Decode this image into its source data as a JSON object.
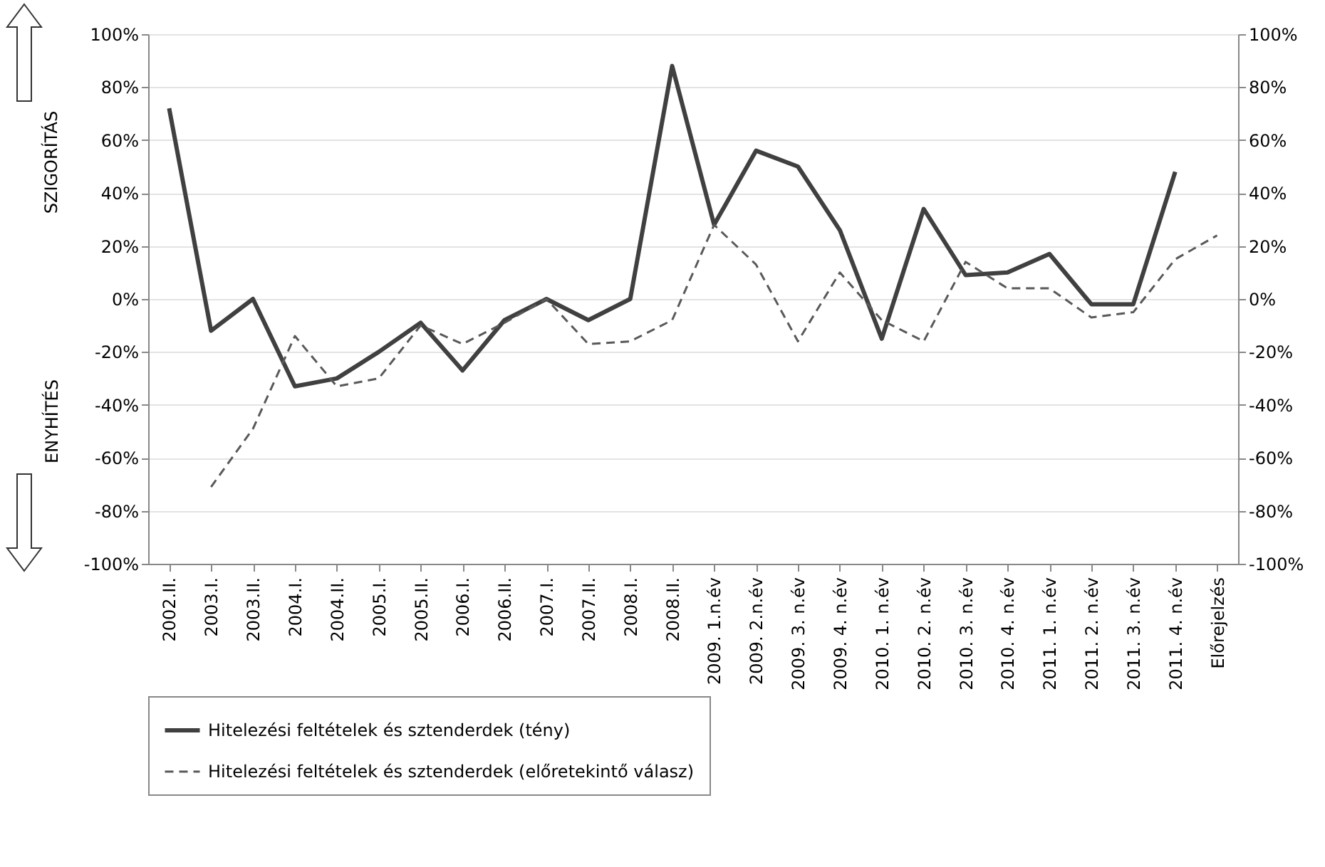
{
  "chart_data": {
    "type": "line",
    "categories": [
      "2002.II.",
      "2003.I.",
      "2003.II.",
      "2004.I.",
      "2004.II.",
      "2005.I.",
      "2005.II.",
      "2006.I.",
      "2006.II.",
      "2007.I.",
      "2007.II.",
      "2008.I.",
      "2008.II.",
      "2009. 1.n.év",
      "2009. 2.n.év",
      "2009. 3. n.év",
      "2009. 4. n.év",
      "2010. 1. n.év",
      "2010. 2. n.év",
      "2010. 3. n.év",
      "2010. 4. n.év",
      "2011. 1. n.év",
      "2011. 2. n.év",
      "2011. 3. n.év",
      "2011. 4. n.év",
      "Előrejelzés"
    ],
    "series": [
      {
        "name": "Hitelezési feltételek és sztenderdek (tény)",
        "color": "#404040",
        "line_style": "solid",
        "values": [
          72,
          -12,
          0,
          -33,
          -30,
          -20,
          -9,
          -27,
          -8,
          0,
          -8,
          0,
          88,
          28,
          56,
          50,
          26,
          -15,
          34,
          9,
          10,
          17,
          -2,
          -2,
          48,
          null
        ]
      },
      {
        "name": "Hitelezési feltételek és sztenderdek (előretekintő válasz)",
        "color": "#595959",
        "line_style": "dashed",
        "values": [
          null,
          -71,
          -49,
          -14,
          -33,
          -30,
          -10,
          -17,
          -9,
          0,
          -17,
          -16,
          -8,
          28,
          13,
          -16,
          10,
          -8,
          -16,
          14,
          4,
          4,
          -7,
          -5,
          15,
          24
        ]
      }
    ],
    "ylim": [
      -100,
      100
    ],
    "yticks": [
      {
        "value": -100,
        "label": "-100%"
      },
      {
        "value": -80,
        "label": "-80%"
      },
      {
        "value": -60,
        "label": "-60%"
      },
      {
        "value": -40,
        "label": "-40%"
      },
      {
        "value": -20,
        "label": "-20%"
      },
      {
        "value": 0,
        "label": "0%"
      },
      {
        "value": 20,
        "label": "20%"
      },
      {
        "value": 40,
        "label": "40%"
      },
      {
        "value": 60,
        "label": "60%"
      },
      {
        "value": 80,
        "label": "80%"
      },
      {
        "value": 100,
        "label": "100%"
      }
    ],
    "y2lim": [
      -100,
      100
    ],
    "y2ticks": [
      {
        "value": -100,
        "label": "-100%"
      },
      {
        "value": -80,
        "label": "-80%"
      },
      {
        "value": -60,
        "label": "-60%"
      },
      {
        "value": -40,
        "label": "-40%"
      },
      {
        "value": -20,
        "label": "-20%"
      },
      {
        "value": 0,
        "label": "0%"
      },
      {
        "value": 20,
        "label": "20%"
      },
      {
        "value": 40,
        "label": "40%"
      },
      {
        "value": 60,
        "label": "60%"
      },
      {
        "value": 80,
        "label": "80%"
      },
      {
        "value": 100,
        "label": "100%"
      }
    ],
    "annotations": [
      "SZIGORÍTÁS",
      "ENYHÍTÉS"
    ],
    "grid": "y",
    "legend": "bottom"
  }
}
